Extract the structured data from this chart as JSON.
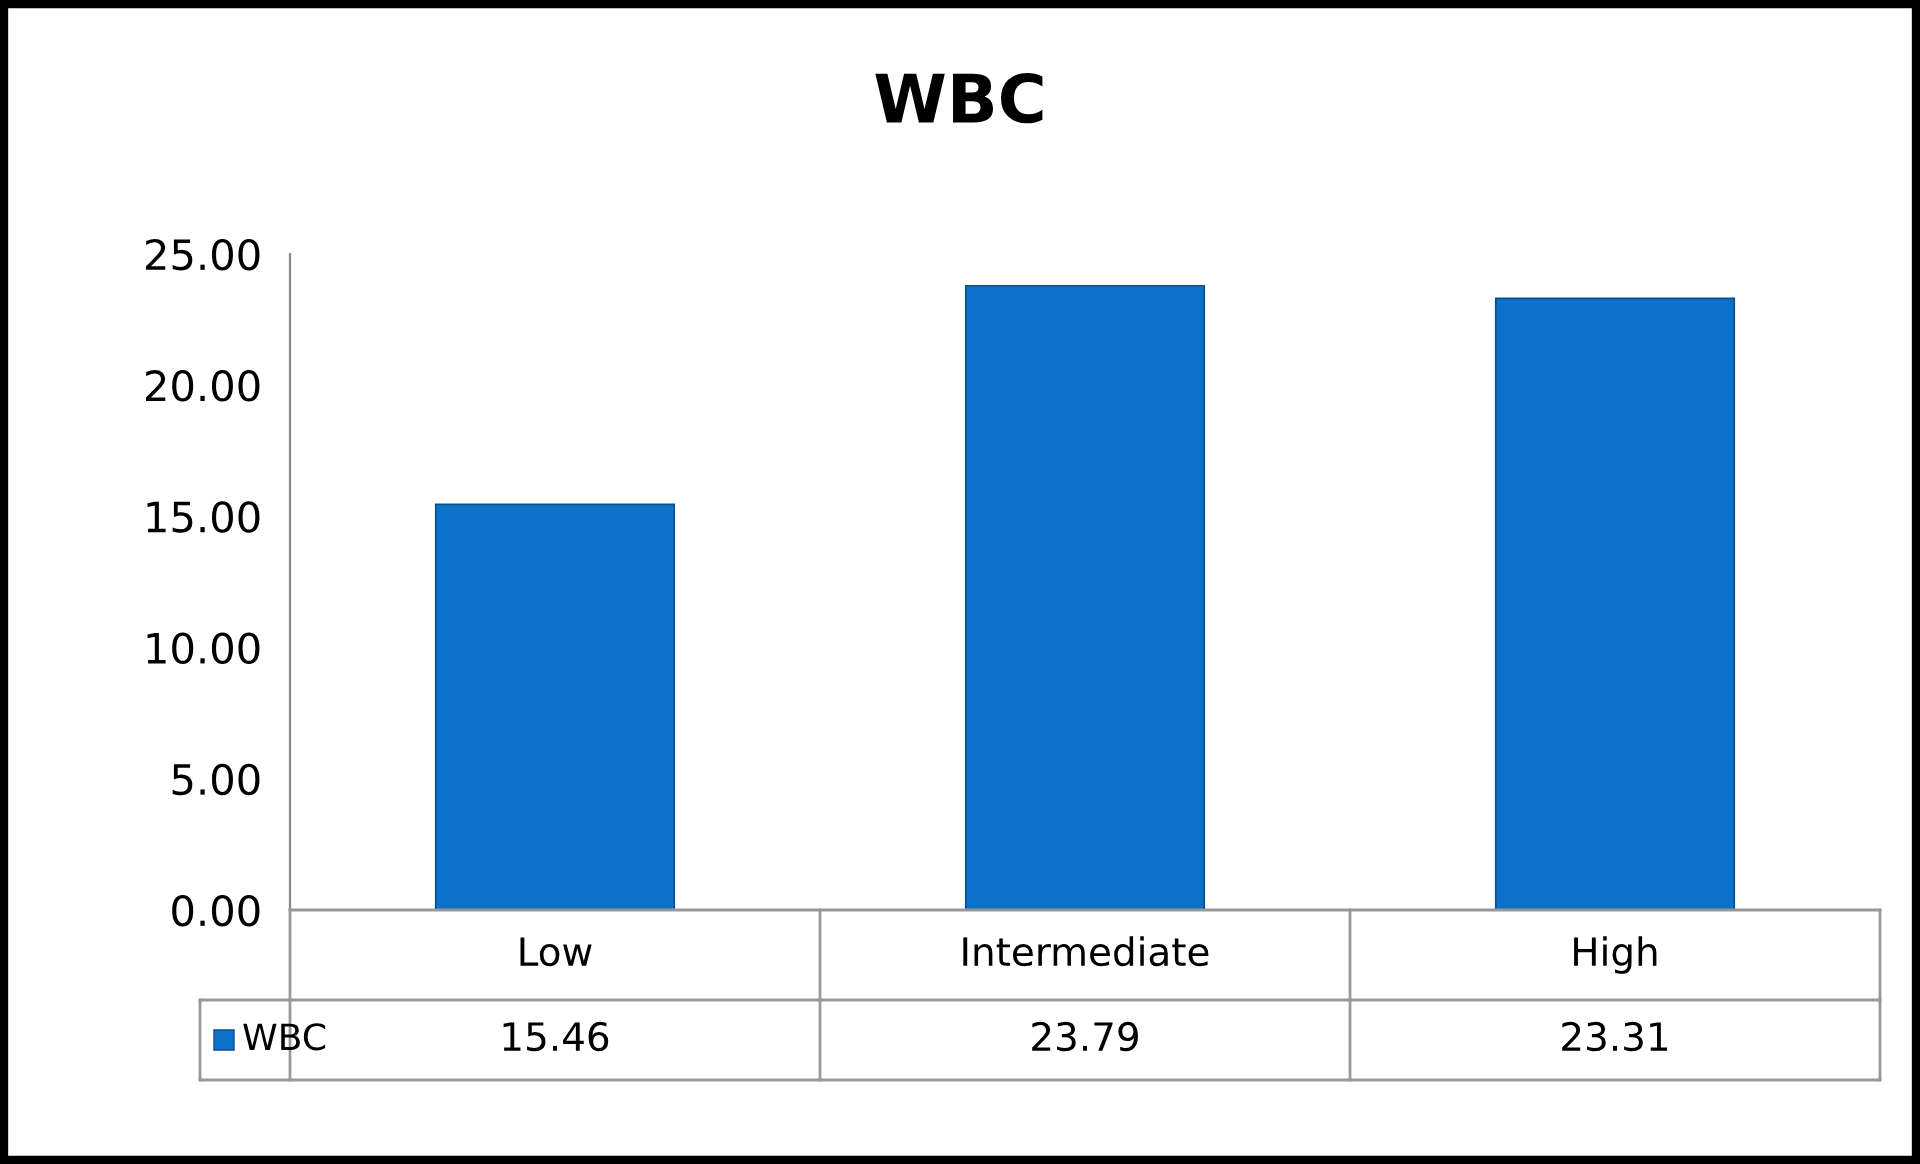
{
  "chart_data": {
    "type": "bar",
    "title": "WBC",
    "categories": [
      "Low",
      "Intermediate",
      "High"
    ],
    "series": [
      {
        "name": "WBC",
        "color": "#0a72c9",
        "values": [
          15.46,
          23.79,
          23.31
        ]
      }
    ],
    "ylim": [
      0,
      25
    ],
    "yticks": [
      {
        "value": 0,
        "label": "0.00"
      },
      {
        "value": 5,
        "label": "5.00"
      },
      {
        "value": 10,
        "label": "10.00"
      },
      {
        "value": 15,
        "label": "15.00"
      },
      {
        "value": 20,
        "label": "20.00"
      },
      {
        "value": 25,
        "label": "25.00"
      }
    ],
    "grid": false,
    "legend": "bottom",
    "data_labels": true
  }
}
